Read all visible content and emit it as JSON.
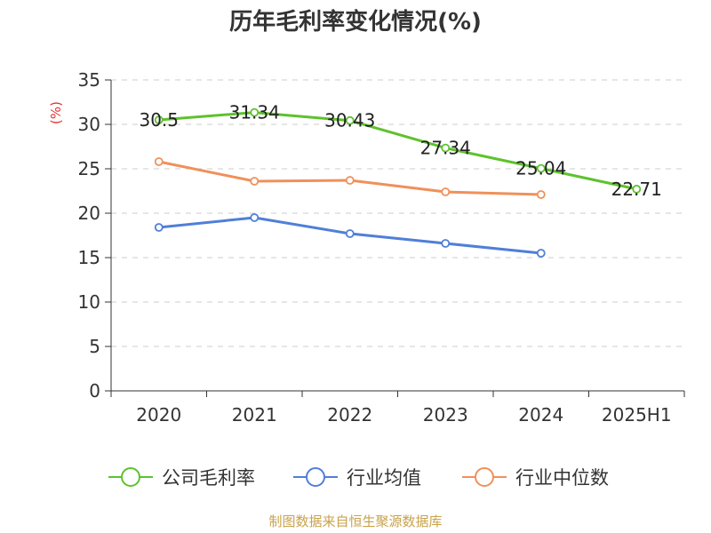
{
  "chart_data": {
    "type": "line",
    "title": "历年毛利率变化情况(%)",
    "ylabel": "(%)",
    "categories": [
      "2020",
      "2021",
      "2022",
      "2023",
      "2024",
      "2025H1"
    ],
    "ylim": [
      0,
      35
    ],
    "yticks": [
      0,
      5,
      10,
      15,
      20,
      25,
      30,
      35
    ],
    "grid": true,
    "legend_position": "bottom",
    "series": [
      {
        "name": "公司毛利率",
        "color": "#5ec22e",
        "values": [
          30.5,
          31.34,
          30.43,
          27.34,
          25.04,
          22.71
        ],
        "labels": [
          "30.5",
          "31.34",
          "30.43",
          "27.34",
          "25.04",
          "22.71"
        ]
      },
      {
        "name": "行业均值",
        "color": "#4f7fd8",
        "values": [
          18.4,
          19.5,
          17.7,
          16.6,
          15.5,
          null
        ]
      },
      {
        "name": "行业中位数",
        "color": "#f0905a",
        "values": [
          25.8,
          23.6,
          23.7,
          22.4,
          22.1,
          null
        ]
      }
    ]
  },
  "footer": "制图数据来自恒生聚源数据库"
}
